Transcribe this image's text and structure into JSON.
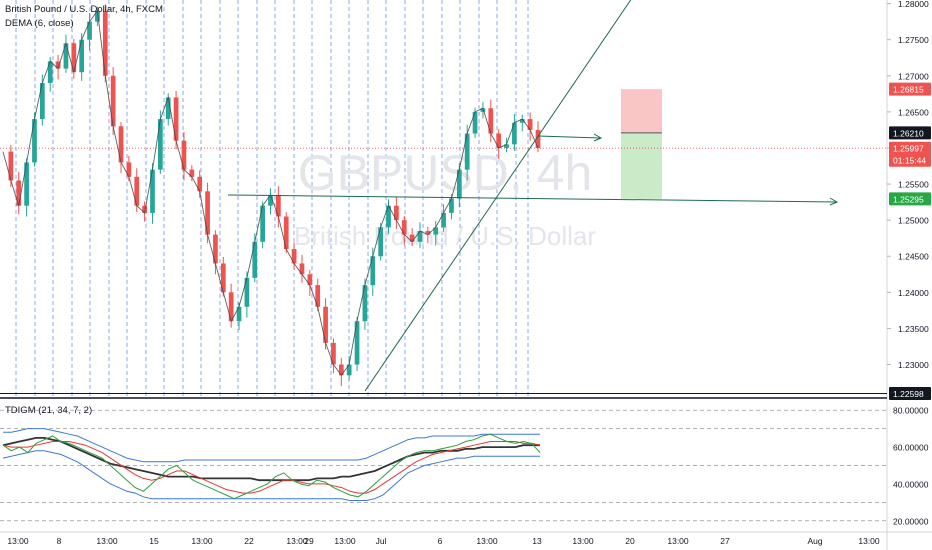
{
  "header": {
    "symbol_title": "British Pound / U.S. Dollar, 4h, FXCM",
    "indicator": "DEMA (6, close)",
    "oscillator": "TDIGM (21, 34, 7, 2)"
  },
  "watermark": {
    "ticker": "GBPUSD, 4h",
    "name": "British Pound / U.S. Dollar"
  },
  "colors": {
    "bull": "#26a69a",
    "bear": "#ef5350",
    "trendline": "#1e6b52",
    "stop_zone": "#f9c5c5",
    "target_zone": "#c9ebc8",
    "grid_dash": "#4a7bd6"
  },
  "chart_data": {
    "type": "candlestick",
    "ylim": [
      1.2255,
      1.2805
    ],
    "y_ticks": [
      "1.28000",
      "1.27500",
      "1.27000",
      "1.26500",
      "1.26000",
      "1.25500",
      "1.25000",
      "1.24500",
      "1.24000",
      "1.23500",
      "1.23000"
    ],
    "x_ticks": [
      "13:00",
      "8",
      "13:00",
      "15",
      "13:00",
      "22",
      "13:00",
      "29",
      "13:00",
      "Jul",
      "6",
      "13:00",
      "13",
      "13:00",
      "20",
      "13:00",
      "27",
      "Aug",
      "13:00"
    ],
    "price_labels": [
      {
        "value": "1.26815",
        "color": "#ef5350"
      },
      {
        "value": "1.26210",
        "color": "#131722"
      },
      {
        "value": "1.25997",
        "color": "#ef5350"
      },
      {
        "value": "01:15:44",
        "color": "#ef5350"
      },
      {
        "value": "1.25295",
        "color": "#27a844"
      },
      {
        "value": "1.22598",
        "color": "#131722"
      }
    ],
    "candle_path": [
      1.2595,
      1.2555,
      1.252,
      1.258,
      1.264,
      1.269,
      1.272,
      1.271,
      1.2745,
      1.2705,
      1.275,
      1.2775,
      1.279,
      1.27,
      1.263,
      1.258,
      1.256,
      1.252,
      1.251,
      1.257,
      1.264,
      1.267,
      1.261,
      1.257,
      1.256,
      1.254,
      1.248,
      1.244,
      1.24,
      1.236,
      1.238,
      1.242,
      1.247,
      1.252,
      1.2535,
      1.2505,
      1.246,
      1.244,
      1.2425,
      1.241,
      1.238,
      1.233,
      1.23,
      1.2285,
      1.23,
      1.236,
      1.241,
      1.245,
      1.249,
      1.252,
      1.25,
      1.248,
      1.247,
      1.2485,
      1.248,
      1.249,
      1.251,
      1.253,
      1.257,
      1.262,
      1.265,
      1.2655,
      1.262,
      1.26,
      1.2605,
      1.2635,
      1.264,
      1.2625,
      1.26
    ],
    "oscillator": {
      "ylim": [
        15,
        85
      ],
      "y_ticks": [
        "80.00000",
        "60.00000",
        "40.00000",
        "20.00000"
      ],
      "rsi": [
        61,
        58,
        60,
        57,
        62,
        64,
        66,
        63,
        62,
        60,
        58,
        56,
        54,
        50,
        46,
        42,
        38,
        36,
        40,
        44,
        48,
        50,
        46,
        42,
        40,
        38,
        36,
        34,
        32,
        34,
        36,
        38,
        40,
        44,
        46,
        42,
        40,
        39,
        42,
        41,
        38,
        36,
        34,
        33,
        36,
        40,
        44,
        48,
        52,
        55,
        57,
        58,
        58,
        59,
        60,
        61,
        63,
        64,
        66,
        67,
        65,
        63,
        62,
        63,
        62,
        57
      ],
      "signal": [
        61,
        60,
        60,
        60,
        61,
        62,
        63,
        63,
        63,
        62,
        61,
        59,
        57,
        54,
        51,
        48,
        45,
        43,
        42,
        43,
        45,
        47,
        47,
        45,
        43,
        41,
        39,
        37,
        36,
        35,
        35,
        36,
        38,
        40,
        42,
        42,
        41,
        40,
        40,
        40,
        39,
        38,
        36,
        35,
        35,
        37,
        40,
        43,
        46,
        49,
        52,
        54,
        56,
        57,
        58,
        59,
        60,
        61,
        62,
        63,
        63,
        63,
        63,
        62,
        62,
        61
      ],
      "mbl": [
        61,
        62,
        63,
        64,
        65,
        65,
        64,
        63,
        61,
        59,
        57,
        55,
        53,
        51,
        50,
        49,
        48,
        47,
        46,
        45,
        44,
        44,
        44,
        44,
        43,
        43,
        43,
        43,
        43,
        43,
        43,
        42,
        42,
        42,
        42,
        42,
        42,
        42,
        43,
        43,
        43,
        44,
        44,
        45,
        46,
        47,
        49,
        51,
        53,
        55,
        56,
        57,
        57,
        58,
        58,
        58,
        59,
        59,
        60,
        60,
        60,
        60,
        60,
        61,
        61,
        61
      ],
      "upper": [
        68,
        68,
        69,
        70,
        70,
        70,
        69,
        68,
        67,
        66,
        64,
        62,
        60,
        58,
        56,
        54,
        53,
        52,
        52,
        52,
        52,
        52,
        53,
        53,
        53,
        53,
        53,
        53,
        53,
        53,
        53,
        53,
        53,
        53,
        53,
        53,
        53,
        53,
        53,
        53,
        53,
        53,
        53,
        53,
        54,
        56,
        58,
        60,
        62,
        64,
        65,
        65,
        66,
        66,
        66,
        66,
        66,
        66,
        67,
        67,
        67,
        67,
        67,
        67,
        67,
        67
      ],
      "lower": [
        54,
        55,
        56,
        57,
        58,
        58,
        57,
        56,
        54,
        52,
        49,
        46,
        43,
        40,
        38,
        36,
        35,
        33,
        32,
        32,
        32,
        32,
        32,
        32,
        32,
        32,
        32,
        32,
        32,
        32,
        32,
        32,
        32,
        32,
        32,
        32,
        32,
        32,
        32,
        32,
        32,
        32,
        31,
        31,
        31,
        32,
        34,
        38,
        42,
        46,
        48,
        50,
        51,
        52,
        53,
        54,
        54,
        55,
        55,
        55,
        55,
        55,
        55,
        55,
        55,
        55
      ]
    }
  }
}
